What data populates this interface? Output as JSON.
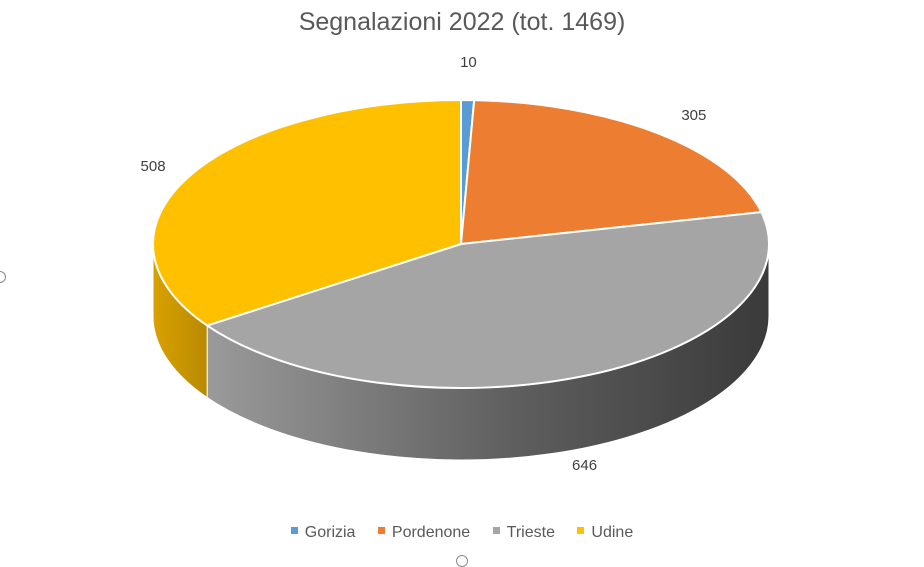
{
  "chart_data": {
    "type": "pie",
    "title": "Segnalazioni 2022 (tot. 1469)",
    "categories": [
      "Gorizia",
      "Pordenone",
      "Trieste",
      "Udine"
    ],
    "values": [
      10,
      305,
      646,
      508
    ],
    "colors": [
      "#5B9BD5",
      "#ED7D31",
      "#A5A5A5",
      "#FFC000"
    ],
    "data_labels": [
      "10",
      "305",
      "646",
      "508"
    ],
    "three_d": true,
    "legend": "bottom"
  }
}
